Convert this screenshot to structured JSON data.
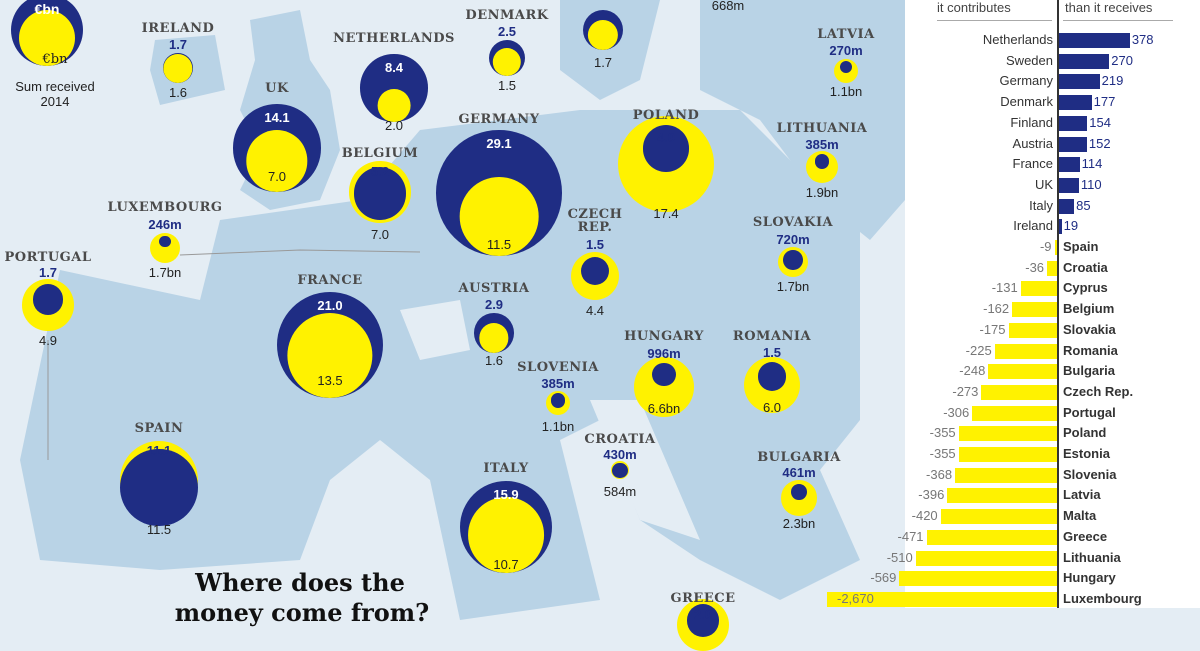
{
  "legend": {
    "top_label": "€bn",
    "inner_label": "€bn",
    "caption_line1": "Sum received",
    "caption_line2": "2014"
  },
  "headline": {
    "line1": "Where does the",
    "line2": "money come from?"
  },
  "colors": {
    "contributed": "#1f2d84",
    "received": "#fff200",
    "land": "#b9d3e6",
    "sea": "#e4edf4"
  },
  "stray_labels": {
    "top_right_received": "668m"
  },
  "chart_data": [
    {
      "type": "bubble-map",
      "note_series": [
        "Sum contributed (€bn)",
        "Sum received 2014 (€bn)"
      ],
      "countries": [
        {
          "name": "IRELAND",
          "contributed": "1.7",
          "received": "1.6",
          "c": 1.7,
          "r": 1.6
        },
        {
          "name": "UK",
          "contributed": "14.1",
          "received": "7.0",
          "c": 14.1,
          "r": 7.0
        },
        {
          "name": "NETHERLANDS",
          "contributed": "8.4",
          "received": "2.0",
          "c": 8.4,
          "r": 2.0
        },
        {
          "name": "DENMARK",
          "contributed": "2.5",
          "received": "1.5",
          "c": 2.5,
          "r": 1.5
        },
        {
          "name": "",
          "contributed": "",
          "received": "1.7",
          "c": 3.0,
          "r": 1.7
        },
        {
          "name": "GERMANY",
          "contributed": "29.1",
          "received": "11.5",
          "c": 29.1,
          "r": 11.5
        },
        {
          "name": "BELGIUM",
          "contributed": "5.2",
          "received": "7.0",
          "c": 5.2,
          "r": 7.0
        },
        {
          "name": "LATVIA",
          "contributed": "270m",
          "received": "1.1bn",
          "c": 0.27,
          "r": 1.1
        },
        {
          "name": "POLAND",
          "contributed": "4.0",
          "received": "17.4",
          "c": 4.0,
          "r": 17.4
        },
        {
          "name": "LITHUANIA",
          "contributed": "385m",
          "received": "1.9bn",
          "c": 0.385,
          "r": 1.9
        },
        {
          "name": "LUXEMBOURG",
          "contributed": "246m",
          "received": "1.7bn",
          "c": 0.246,
          "r": 1.7
        },
        {
          "name": "CZECH REP.",
          "contributed": "1.5",
          "received": "4.4",
          "c": 1.5,
          "r": 4.4
        },
        {
          "name": "SLOVAKIA",
          "contributed": "720m",
          "received": "1.7bn",
          "c": 0.72,
          "r": 1.7
        },
        {
          "name": "PORTUGAL",
          "contributed": "1.7",
          "received": "4.9",
          "c": 1.7,
          "r": 4.9
        },
        {
          "name": "FRANCE",
          "contributed": "21.0",
          "received": "13.5",
          "c": 21.0,
          "r": 13.5
        },
        {
          "name": "AUSTRIA",
          "contributed": "2.9",
          "received": "1.6",
          "c": 2.9,
          "r": 1.6
        },
        {
          "name": "HUNGARY",
          "contributed": "996m",
          "received": "6.6bn",
          "c": 0.996,
          "r": 6.6
        },
        {
          "name": "ROMANIA",
          "contributed": "1.5",
          "received": "6.0",
          "c": 1.5,
          "r": 6.0
        },
        {
          "name": "SLOVENIA",
          "contributed": "385m",
          "received": "1.1bn",
          "c": 0.385,
          "r": 1.1
        },
        {
          "name": "SPAIN",
          "contributed": "11.1",
          "received": "11.5",
          "c": 11.1,
          "r": 11.5
        },
        {
          "name": "CROATIA",
          "contributed": "430m",
          "received": "584m",
          "c": 0.43,
          "r": 0.584
        },
        {
          "name": "BULGARIA",
          "contributed": "461m",
          "received": "2.3bn",
          "c": 0.461,
          "r": 2.3
        },
        {
          "name": "ITALY",
          "contributed": "15.9",
          "received": "10.7",
          "c": 15.9,
          "r": 10.7
        },
        {
          "name": "GREECE",
          "contributed": "2.0",
          "received": "",
          "c": 2.0,
          "r": 5.0
        }
      ]
    },
    {
      "type": "bar",
      "orientation": "horizontal",
      "header_left": "it contributes",
      "header_right": "than it receives",
      "categories": [
        "Netherlands",
        "Sweden",
        "Germany",
        "Denmark",
        "Finland",
        "Austria",
        "France",
        "UK",
        "Italy",
        "Ireland",
        "Spain",
        "Croatia",
        "Cyprus",
        "Belgium",
        "Slovakia",
        "Romania",
        "Bulgaria",
        "Czech Rep.",
        "Portugal",
        "Poland",
        "Estonia",
        "Slovenia",
        "Latvia",
        "Malta",
        "Greece",
        "Lithuania",
        "Hungary",
        "Luxembourg"
      ],
      "values": [
        378,
        270,
        219,
        177,
        154,
        152,
        114,
        110,
        85,
        19,
        -9,
        -36,
        -131,
        -162,
        -175,
        -225,
        -248,
        -273,
        -306,
        -355,
        -355,
        -368,
        -396,
        -420,
        -471,
        -510,
        -569,
        -2670
      ],
      "labels": [
        "378",
        "270",
        "219",
        "177",
        "154",
        "152",
        "114",
        "110",
        "85",
        "19",
        "-9",
        "-36",
        "-131",
        "-162",
        "-175",
        "-225",
        "-248",
        "-273",
        "-306",
        "-355",
        "-355",
        "-368",
        "-396",
        "-420",
        "-471",
        "-510",
        "-569",
        "-2,670"
      ],
      "axis_break_for": "Luxembourg"
    }
  ]
}
